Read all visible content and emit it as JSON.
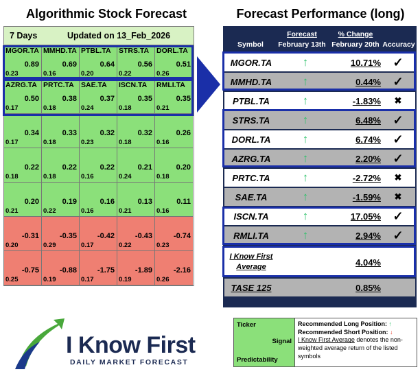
{
  "titles": {
    "left": "Algorithmic Stock Forecast",
    "right": "Forecast Performance (long)"
  },
  "grid": {
    "period": "7 Days",
    "updated": "Updated on 13_Feb_2026",
    "rows": [
      [
        {
          "sym": "MGOR.TA",
          "sig": "0.89",
          "pred": "0.23"
        },
        {
          "sym": "MMHD.TA",
          "sig": "0.69",
          "pred": "0.16"
        },
        {
          "sym": "PTBL.TA",
          "sig": "0.64",
          "pred": "0.20"
        },
        {
          "sym": "STRS.TA",
          "sig": "0.56",
          "pred": "0.22"
        },
        {
          "sym": "DORL.TA",
          "sig": "0.51",
          "pred": "0.26"
        }
      ],
      [
        {
          "sym": "AZRG.TA",
          "sig": "0.50",
          "pred": "0.17"
        },
        {
          "sym": "PRTC.TA",
          "sig": "0.38",
          "pred": "0.18"
        },
        {
          "sym": "SAE.TA",
          "sig": "0.37",
          "pred": "0.24"
        },
        {
          "sym": "ISCN.TA",
          "sig": "0.35",
          "pred": "0.18"
        },
        {
          "sym": "RMLI.TA",
          "sig": "0.35",
          "pred": "0.21"
        }
      ],
      [
        {
          "sym": "",
          "sig": "0.34",
          "pred": "0.17"
        },
        {
          "sym": "",
          "sig": "0.33",
          "pred": "0.18"
        },
        {
          "sym": "",
          "sig": "0.32",
          "pred": "0.23"
        },
        {
          "sym": "",
          "sig": "0.32",
          "pred": "0.18"
        },
        {
          "sym": "",
          "sig": "0.26",
          "pred": "0.16"
        }
      ],
      [
        {
          "sym": "",
          "sig": "0.22",
          "pred": "0.18"
        },
        {
          "sym": "",
          "sig": "0.22",
          "pred": "0.18"
        },
        {
          "sym": "",
          "sig": "0.22",
          "pred": "0.16"
        },
        {
          "sym": "",
          "sig": "0.21",
          "pred": "0.24"
        },
        {
          "sym": "",
          "sig": "0.20",
          "pred": "0.18"
        }
      ],
      [
        {
          "sym": "",
          "sig": "0.20",
          "pred": "0.21"
        },
        {
          "sym": "",
          "sig": "0.19",
          "pred": "0.22"
        },
        {
          "sym": "",
          "sig": "0.16",
          "pred": "0.16"
        },
        {
          "sym": "",
          "sig": "0.13",
          "pred": "0.21"
        },
        {
          "sym": "",
          "sig": "0.11",
          "pred": "0.16"
        }
      ],
      [
        {
          "sym": "",
          "sig": "-0.31",
          "pred": "0.20"
        },
        {
          "sym": "",
          "sig": "-0.35",
          "pred": "0.29"
        },
        {
          "sym": "",
          "sig": "-0.42",
          "pred": "0.17"
        },
        {
          "sym": "",
          "sig": "-0.43",
          "pred": "0.22"
        },
        {
          "sym": "",
          "sig": "-0.74",
          "pred": "0.23"
        }
      ],
      [
        {
          "sym": "",
          "sig": "-0.75",
          "pred": "0.25"
        },
        {
          "sym": "",
          "sig": "-0.88",
          "pred": "0.19"
        },
        {
          "sym": "",
          "sig": "-1.75",
          "pred": "0.17"
        },
        {
          "sym": "",
          "sig": "-1.89",
          "pred": "0.19"
        },
        {
          "sym": "",
          "sig": "-2.16",
          "pred": "0.26"
        }
      ]
    ]
  },
  "perf": {
    "headers": {
      "symbol": "Symbol",
      "forecast": "Forecast",
      "forecast_date": "February 13th",
      "change": "% Change",
      "change_date": "February 20th",
      "accuracy": "Accuracy"
    },
    "rows": [
      {
        "sym": "MGOR.TA",
        "pct": "10.71%",
        "acc": "✓"
      },
      {
        "sym": "MMHD.TA",
        "pct": "0.44%",
        "acc": "✓"
      },
      {
        "sym": "PTBL.TA",
        "pct": "-1.83%",
        "acc": "✖"
      },
      {
        "sym": "STRS.TA",
        "pct": "6.48%",
        "acc": "✓"
      },
      {
        "sym": "DORL.TA",
        "pct": "6.74%",
        "acc": "✓"
      },
      {
        "sym": "AZRG.TA",
        "pct": "2.20%",
        "acc": "✓"
      },
      {
        "sym": "PRTC.TA",
        "pct": "-2.72%",
        "acc": "✖"
      },
      {
        "sym": "SAE.TA",
        "pct": "-1.59%",
        "acc": "✖"
      },
      {
        "sym": "ISCN.TA",
        "pct": "17.05%",
        "acc": "✓"
      },
      {
        "sym": "RMLI.TA",
        "pct": "2.94%",
        "acc": "✓"
      }
    ],
    "arrow": "↑",
    "average": {
      "label_line1": "I Know First",
      "label_line2": "Average",
      "pct": "4.04%"
    },
    "benchmark": {
      "label": "TASE 125",
      "pct": "0.85%"
    }
  },
  "logo": {
    "name": "I Know First",
    "tagline": "DAILY MARKET FORECAST"
  },
  "legend": {
    "ticker": "Ticker",
    "signal": "Signal",
    "predictability": "Predictability",
    "long": "Recommended Long Position:",
    "short": "Recommended Short Position:",
    "up_arrow": "↑",
    "down_arrow": "↓",
    "avg_name": "I Know First Average",
    "avg_desc": " denotes the non-weighted average return of the listed symbols"
  },
  "colors": {
    "positive": "#8be07a",
    "negative": "#ef7f72",
    "navy": "#1b2a52",
    "highlight": "#1a2fa8"
  }
}
